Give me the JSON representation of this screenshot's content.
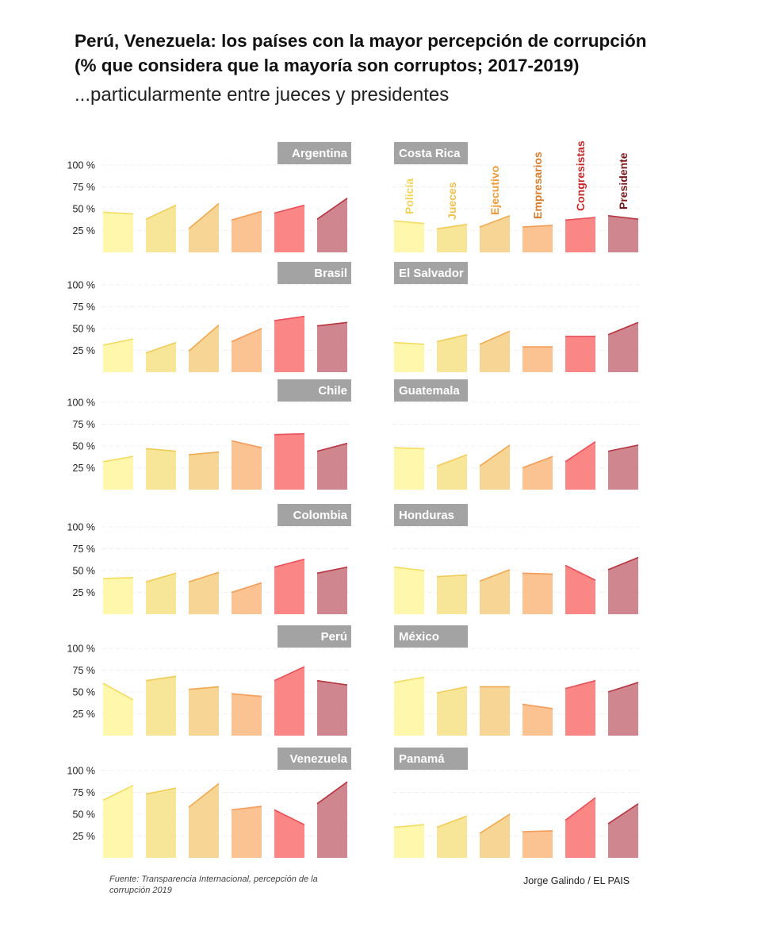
{
  "header": {
    "title_line1": "Perú, Venezuela: los países con la mayor percepción de corrupción",
    "title_line2": "(% que considera que la mayoría son corruptos; 2017-2019)",
    "subtitle": "...particularmente entre jueces y presidentes"
  },
  "footer": {
    "source": "Fuente: Transparencia Internacional, percepción de la corrupción 2019",
    "credit": "Jorge Galindo / EL PAIS"
  },
  "chart_data": {
    "type": "area",
    "title": "Perú, Venezuela: los países con la mayor percepción de corrupción",
    "ylabel": "% que considera que la mayoría son corruptos",
    "ylim": [
      0,
      100
    ],
    "yticks": [
      "100 %",
      "75 %",
      "50 %",
      "25 %"
    ],
    "ytick_values": [
      100,
      75,
      50,
      25
    ],
    "x": [
      "2017",
      "2019"
    ],
    "categories": [
      "Policía",
      "Jueces",
      "Ejecutivo",
      "Empresarios",
      "Congresistas",
      "Presidente"
    ],
    "category_colors": {
      "fill": [
        "#fff7a8",
        "#f7e592",
        "#f5d38f",
        "#fbc08c",
        "#fb8080",
        "#cc8088"
      ],
      "line": [
        "#f3dc62",
        "#f0cb5a",
        "#f0a850",
        "#f39c5a",
        "#e8505a",
        "#b53540"
      ],
      "label": [
        "#f2d45a",
        "#efc04e",
        "#ef9a3a",
        "#d67d2f",
        "#c8292d",
        "#7a1a1f"
      ]
    },
    "countries": [
      {
        "name": "Argentina",
        "series": [
          [
            46,
            44
          ],
          [
            38,
            54
          ],
          [
            27,
            56
          ],
          [
            37,
            47
          ],
          [
            45,
            54
          ],
          [
            38,
            62
          ]
        ]
      },
      {
        "name": "Costa Rica",
        "series": [
          [
            36,
            33
          ],
          [
            27,
            32
          ],
          [
            29,
            42
          ],
          [
            29,
            31
          ],
          [
            37,
            40
          ],
          [
            42,
            38
          ]
        ]
      },
      {
        "name": "Brasil",
        "series": [
          [
            31,
            38
          ],
          [
            22,
            34
          ],
          [
            24,
            54
          ],
          [
            35,
            50
          ],
          [
            59,
            64
          ],
          [
            53,
            57
          ]
        ]
      },
      {
        "name": "El Salvador",
        "series": [
          [
            34,
            32
          ],
          [
            35,
            43
          ],
          [
            32,
            47
          ],
          [
            29,
            29
          ],
          [
            41,
            41
          ],
          [
            43,
            57
          ]
        ]
      },
      {
        "name": "Chile",
        "series": [
          [
            32,
            38
          ],
          [
            47,
            44
          ],
          [
            40,
            43
          ],
          [
            56,
            48
          ],
          [
            63,
            64
          ],
          [
            44,
            53
          ]
        ]
      },
      {
        "name": "Guatemala",
        "series": [
          [
            48,
            47
          ],
          [
            27,
            40
          ],
          [
            27,
            51
          ],
          [
            25,
            38
          ],
          [
            32,
            55
          ],
          [
            44,
            51
          ]
        ]
      },
      {
        "name": "Colombia",
        "series": [
          [
            41,
            42
          ],
          [
            37,
            47
          ],
          [
            37,
            48
          ],
          [
            25,
            36
          ],
          [
            54,
            63
          ],
          [
            47,
            54
          ]
        ]
      },
      {
        "name": "Honduras",
        "series": [
          [
            54,
            50
          ],
          [
            43,
            45
          ],
          [
            38,
            51
          ],
          [
            47,
            46
          ],
          [
            56,
            39
          ],
          [
            51,
            65
          ]
        ]
      },
      {
        "name": "Perú",
        "series": [
          [
            60,
            41
          ],
          [
            63,
            68
          ],
          [
            53,
            56
          ],
          [
            48,
            45
          ],
          [
            63,
            79
          ],
          [
            63,
            58
          ]
        ]
      },
      {
        "name": "México",
        "series": [
          [
            61,
            67
          ],
          [
            49,
            56
          ],
          [
            56,
            56
          ],
          [
            36,
            31
          ],
          [
            54,
            63
          ],
          [
            50,
            61
          ]
        ]
      },
      {
        "name": "Venezuela",
        "series": [
          [
            66,
            83
          ],
          [
            73,
            80
          ],
          [
            58,
            85
          ],
          [
            55,
            59
          ],
          [
            55,
            38
          ],
          [
            62,
            87
          ]
        ]
      },
      {
        "name": "Panamá",
        "series": [
          [
            35,
            38
          ],
          [
            35,
            48
          ],
          [
            28,
            50
          ],
          [
            30,
            31
          ],
          [
            43,
            69
          ],
          [
            39,
            62
          ]
        ]
      }
    ]
  }
}
